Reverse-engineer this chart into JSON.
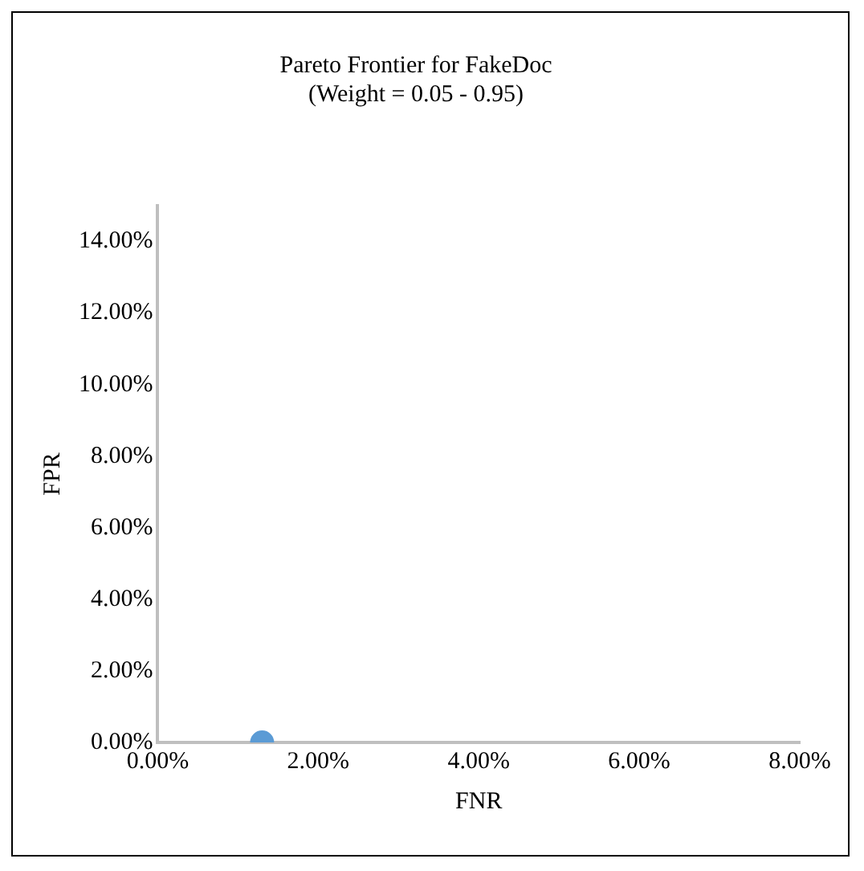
{
  "chart_data": {
    "type": "scatter",
    "title": "Pareto Frontier for FakeDoc",
    "subtitle": "(Weight = 0.05 - 0.95)",
    "xlabel": "FNR",
    "ylabel": "FPR",
    "series": [
      {
        "x": [
          1.3
        ],
        "values": [
          0
        ],
        "color": "#5b9bd5"
      }
    ],
    "xlim": [
      0,
      8
    ],
    "xticks": [
      {
        "value": 0,
        "label": "0.00%"
      },
      {
        "value": 2,
        "label": "2.00%"
      },
      {
        "value": 4,
        "label": "4.00%"
      },
      {
        "value": 6,
        "label": "6.00%"
      },
      {
        "value": 8,
        "label": "8.00%"
      }
    ],
    "ylim": [
      0,
      15
    ],
    "yticks": [
      {
        "value": 0,
        "label": "0.00%"
      },
      {
        "value": 2,
        "label": "2.00%"
      },
      {
        "value": 4,
        "label": "4.00%"
      },
      {
        "value": 6,
        "label": "6.00%"
      },
      {
        "value": 8,
        "label": "8.00%"
      },
      {
        "value": 10,
        "label": "10.00%"
      },
      {
        "value": 12,
        "label": "12.00%"
      },
      {
        "value": 14,
        "label": "14.00%"
      }
    ],
    "grid": false,
    "legend": false,
    "marker": "circle"
  }
}
